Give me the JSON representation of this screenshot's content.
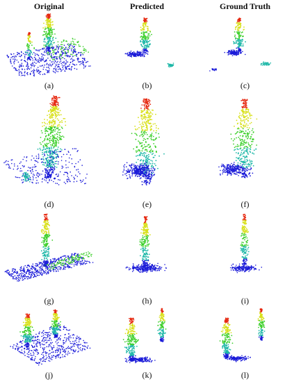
{
  "figure": {
    "column_headers": [
      "Original",
      "Predicted",
      "Ground Truth"
    ],
    "panel_labels": [
      "(a)",
      "(b)",
      "(c)",
      "(d)",
      "(e)",
      "(f)",
      "(g)",
      "(h)",
      "(i)",
      "(j)",
      "(k)",
      "(l)"
    ],
    "colors": {
      "point_low": "#1a1ad8",
      "point_mid_low": "#1fb8a8",
      "point_mid": "#3ccf2a",
      "point_mid_high": "#d8e01a",
      "point_high": "#e62a12"
    }
  }
}
